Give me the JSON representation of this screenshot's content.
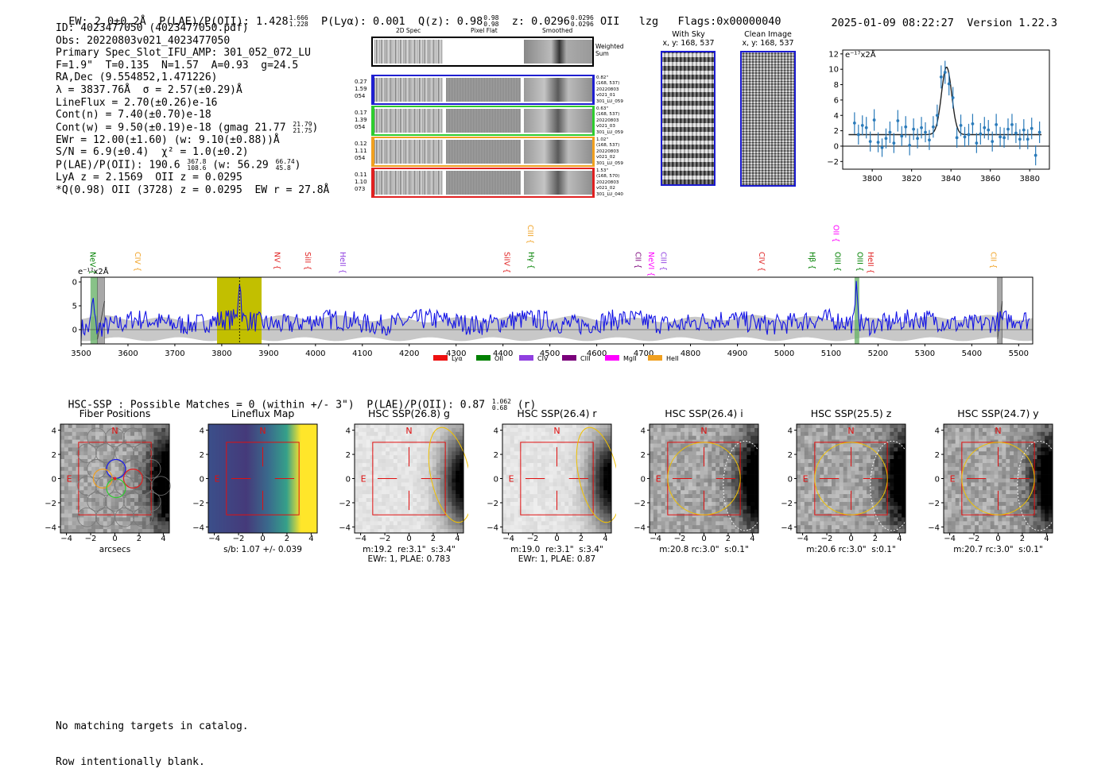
{
  "header": {
    "ew": "EW: 2.0±0.2Å",
    "plae_label": "P(LAE)/P(OII): 1.428",
    "plae_hi": "1.666",
    "plae_lo": "1.228",
    "plya": "P(Lyα): 0.001",
    "q_label": "Q(z): 0.98",
    "q_hi": "0.98",
    "q_lo": "0.98",
    "z_label": "z: 0.0296",
    "z_hi": "0.0296",
    "z_lo": "0.0296",
    "z_line": "OII",
    "tag": "lzg",
    "flags": "Flags:0x00000040",
    "datetime": "2025-01-09 08:22:27",
    "version": "Version 1.22.3"
  },
  "info": {
    "l1": "ID: 4023477050 (4023477050.pdf)",
    "l2": "Obs: 20220803v021_4023477050",
    "l3": "Primary Spec_Slot_IFU_AMP: 301_052_072_LU",
    "l4": "F=1.9\"  T=0.135  N=1.57  A=0.93  g=24.5",
    "l5": "RA,Dec (9.554852,1.471226)",
    "l6": "λ = 3837.76Å  σ = 2.57(±0.29)Å",
    "l7": "LineFlux = 2.70(±0.26)e-16",
    "l8": "Cont(n) = 7.40(±0.70)e-18",
    "l9": "Cont(w) = 9.50(±0.19)e-18 (gmag 21.77",
    "l9_hi": "21.79",
    "l9_lo": "21.75",
    "l10": "EWr = 12.00(±1.60) (w: 9.10(±0.88))Å",
    "l11": "S/N = 6.9(±0.4)  χ² = 1.0(±0.2)",
    "l12": "P(LAE)/P(OII): 190.6",
    "l12_hi": "367.8",
    "l12_lo": "108.6",
    "l12_mid": "(w: 56.29",
    "l12_hi2": "66.74",
    "l12_lo2": "45.8",
    "l13": "LyA z = 2.1569  OII z = 0.0295",
    "l14": "*Q(0.98) OII (3728) z = 0.0295  EW r = 27.8Å"
  },
  "cutouts": {
    "col_headers": [
      "2D Spec",
      "Pixel Flat",
      "Smoothed"
    ],
    "weighted": "Weighted Sum",
    "rows": [
      {
        "l1": "0.27",
        "l2": "1.59",
        "l3": "054",
        "r1": "0.82\"",
        "r2": "(168, 537)",
        "r3": "20220803",
        "r4": "v021_01",
        "r5": "301_LU_059",
        "color": "#1f1fd0"
      },
      {
        "l1": "0.17",
        "l2": "1.39",
        "l3": "054",
        "r1": "0.63\"",
        "r2": "(168, 537)",
        "r3": "20220803",
        "r4": "v021_03",
        "r5": "301_LU_059",
        "color": "#2ecc2e"
      },
      {
        "l1": "0.12",
        "l2": "1.11",
        "l3": "054",
        "r1": "1.02\"",
        "r2": "(168, 537)",
        "r3": "20220803",
        "r4": "v021_02",
        "r5": "301_LU_059",
        "color": "#f0a020"
      },
      {
        "l1": "0.11",
        "l2": "1.10",
        "l3": "073",
        "r1": "1.53\"",
        "r2": "(168, 570)",
        "r3": "20220803",
        "r4": "v021_02",
        "r5": "301_LU_040",
        "color": "#e02020"
      }
    ]
  },
  "sky": {
    "with_sky": "With Sky",
    "with_sky_xy": "x, y: 168, 537",
    "clean": "Clean Image",
    "clean_xy": "x, y: 168, 537"
  },
  "zoom_chart": {
    "ylabel": "e⁻¹⁷x2Å",
    "xticks": [
      "3800",
      "3820",
      "3840",
      "3860",
      "3880"
    ],
    "yticks": [
      "12",
      "10",
      "8",
      "6",
      "4",
      "2",
      "0",
      "−2"
    ]
  },
  "chart_data": [
    {
      "type": "scatter",
      "title": "",
      "xlabel": "",
      "ylabel": "e-17 x2Å",
      "xlim": [
        3785,
        3890
      ],
      "ylim": [
        -3,
        12.5
      ],
      "x": [
        3791,
        3793,
        3795,
        3797,
        3799,
        3801,
        3803,
        3805,
        3807,
        3809,
        3811,
        3813,
        3815,
        3817,
        3819,
        3821,
        3823,
        3825,
        3827,
        3829,
        3831,
        3833,
        3835,
        3837,
        3839,
        3841,
        3843,
        3845,
        3847,
        3849,
        3851,
        3853,
        3855,
        3857,
        3859,
        3861,
        3863,
        3865,
        3867,
        3869,
        3871,
        3873,
        3875,
        3877,
        3879,
        3881,
        3883,
        3885
      ],
      "y": [
        3.0,
        1.5,
        2.7,
        2.4,
        0.6,
        3.4,
        0.5,
        -0.2,
        1.0,
        1.8,
        0.4,
        3.3,
        1.3,
        2.5,
        0.1,
        2.2,
        1.0,
        2.4,
        1.8,
        0.8,
        2.5,
        4.0,
        9.0,
        9.6,
        8.1,
        6.3,
        1.1,
        2.7,
        1.2,
        1.5,
        2.9,
        0.4,
        1.6,
        2.4,
        2.1,
        0.6,
        2.8,
        1.2,
        1.1,
        2.2,
        2.8,
        1.7,
        0.9,
        2.1,
        0.9,
        2.3,
        -1.2,
        1.8
      ],
      "yerr": [
        1.4,
        1.3,
        1.3,
        1.4,
        1.3,
        1.4,
        1.3,
        1.2,
        1.3,
        1.4,
        1.3,
        1.4,
        1.3,
        1.4,
        1.3,
        1.4,
        1.3,
        1.4,
        1.3,
        1.3,
        1.4,
        1.4,
        1.5,
        1.5,
        1.5,
        1.4,
        1.3,
        1.4,
        1.3,
        1.4,
        1.3,
        1.3,
        1.4,
        1.4,
        1.3,
        1.3,
        1.4,
        1.3,
        1.3,
        1.4,
        1.4,
        1.3,
        1.3,
        1.4,
        1.3,
        1.4,
        1.3,
        1.4
      ],
      "model": {
        "type": "gaussian",
        "center": 3837.76,
        "sigma": 2.57,
        "amplitude": 8.8,
        "continuum": 1.5
      }
    },
    {
      "type": "line",
      "title": "",
      "xlabel": "",
      "ylabel": "e-17 x2Å",
      "xlim": [
        3500,
        5530
      ],
      "ylim": [
        -3,
        11
      ],
      "xticks": [
        3500,
        3600,
        3700,
        3800,
        3900,
        4000,
        4100,
        4200,
        4300,
        4400,
        4500,
        4600,
        4700,
        4800,
        4900,
        5000,
        5100,
        5200,
        5300,
        5400,
        5500
      ],
      "yticks": [
        0,
        5,
        10
      ],
      "highlight_regions": [
        [
          3790,
          3885
        ],
        [
          3520,
          3535
        ],
        [
          5150,
          5160
        ]
      ],
      "gray_regions": [
        [
          3535,
          3550
        ],
        [
          5455,
          5465
        ]
      ],
      "peaks": [
        {
          "x": 3838,
          "y": 10.2
        },
        {
          "x": 3525,
          "y": 7.5
        },
        {
          "x": 5155,
          "y": 9.5
        }
      ],
      "line_labels": [
        {
          "name": "NeV",
          "x": 3526,
          "color": "#008000",
          "level": 0
        },
        {
          "name": "CIV",
          "x": 3622,
          "color": "#f0a020",
          "level": 0
        },
        {
          "name": "NV",
          "x": 3920,
          "color": "#e02020",
          "level": 0
        },
        {
          "name": "SiII",
          "x": 3985,
          "color": "#e02020",
          "level": 0
        },
        {
          "name": "HeII",
          "x": 4060,
          "color": "#9040e0",
          "level": 0
        },
        {
          "name": "SiIV",
          "x": 4410,
          "color": "#e02020",
          "level": 0
        },
        {
          "name": "CIII",
          "x": 4460,
          "color": "#f0a020",
          "level": 1
        },
        {
          "name": "Hγ",
          "x": 4462,
          "color": "#008000",
          "level": 0
        },
        {
          "name": "CII",
          "x": 4690,
          "color": "#7a007a",
          "level": 0
        },
        {
          "name": "NeVI",
          "x": 4718,
          "color": "#ff00ff",
          "level": 0
        },
        {
          "name": "CIII",
          "x": 4744,
          "color": "#9040e0",
          "level": 0
        },
        {
          "name": "CIV",
          "x": 4953,
          "color": "#e02020",
          "level": 0
        },
        {
          "name": "Hβ",
          "x": 5061,
          "color": "#008000",
          "level": 0
        },
        {
          "name": "OII",
          "x": 5112,
          "color": "#ff00ff",
          "level": 1
        },
        {
          "name": "OIII",
          "x": 5115,
          "color": "#008000",
          "level": 0
        },
        {
          "name": "OIII",
          "x": 5163,
          "color": "#008000",
          "level": 0
        },
        {
          "name": "HeII",
          "x": 5186,
          "color": "#e02020",
          "level": 0
        },
        {
          "name": "CII",
          "x": 5448,
          "color": "#f0a020",
          "level": 0
        }
      ],
      "legend": [
        {
          "name": "Lyα",
          "color": "#ee1111"
        },
        {
          "name": "OII",
          "color": "#008000"
        },
        {
          "name": "CIV",
          "color": "#9040e0"
        },
        {
          "name": "CIII",
          "color": "#7a007a"
        },
        {
          "name": "MgII",
          "color": "#ff00ff"
        },
        {
          "name": "HeII",
          "color": "#f0a020"
        }
      ]
    }
  ],
  "full_chart": {
    "ylabel": "e⁻¹⁷x2Å",
    "xticks": [
      "3500",
      "3600",
      "3700",
      "3800",
      "3900",
      "4000",
      "4100",
      "4200",
      "4300",
      "4400",
      "4500",
      "4600",
      "4700",
      "4800",
      "4900",
      "5000",
      "5100",
      "5200",
      "5300",
      "5400",
      "5500"
    ],
    "yticks": [
      "10",
      "5",
      "0"
    ]
  },
  "hsc": {
    "title": "HSC-SSP : Possible Matches = 0 (within +/- 3\")  P(LAE)/P(OII): 0.87",
    "hi": "1.062",
    "lo": "0.68",
    "suffix": "(r)",
    "panels": [
      {
        "title": "Fiber Positions",
        "cap1": "arcsecs",
        "cap2": "",
        "kind": "fiber"
      },
      {
        "title": "Lineflux Map",
        "cap1": "s/b: 1.07 +/- 0.039",
        "cap2": "",
        "kind": "flux"
      },
      {
        "title": "HSC SSP(26.8) g",
        "cap1": "m:19.2  re:3.1\"  s:3.4\"",
        "cap2": "EWr: 1, PLAE: 0.783",
        "kind": "g"
      },
      {
        "title": "HSC SSP(26.4) r",
        "cap1": "m:19.0  re:3.1\"  s:3.4\"",
        "cap2": "EWr: 1, PLAE: 0.87",
        "kind": "r"
      },
      {
        "title": "HSC SSP(26.4) i",
        "cap1": "m:20.8 rc:3.0\"  s:0.1\"",
        "cap2": "",
        "kind": "i"
      },
      {
        "title": "HSC SSP(25.5) z",
        "cap1": "m:20.6 rc:3.0\"  s:0.1\"",
        "cap2": "",
        "kind": "z"
      },
      {
        "title": "HSC SSP(24.7) y",
        "cap1": "m:20.7 rc:3.0\"  s:0.1\"",
        "cap2": "",
        "kind": "y"
      }
    ],
    "ticks": [
      "−4",
      "−2",
      "0",
      "2",
      "4"
    ],
    "yticks": [
      "4",
      "2",
      "0",
      "−2",
      "−4"
    ],
    "north": "N",
    "east": "E"
  },
  "footer": {
    "l1": "No matching targets in catalog.",
    "l2": "Row intentionally blank."
  }
}
